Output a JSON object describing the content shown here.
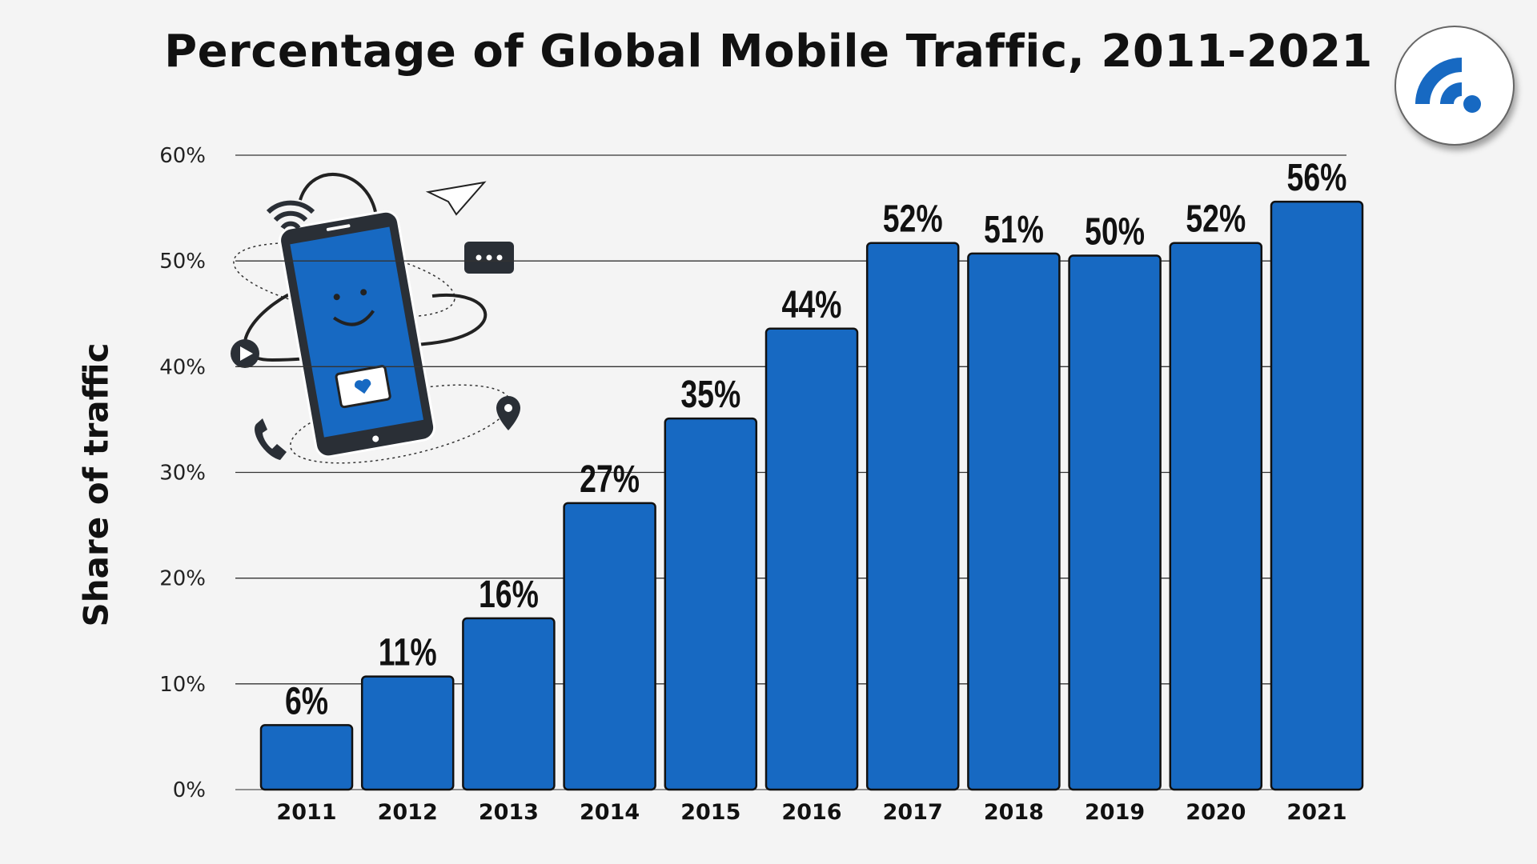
{
  "chart_data": {
    "type": "bar",
    "title": "Percentage of Global Mobile Traffic, 2011-2021",
    "xlabel": "",
    "ylabel": "Share of traffic",
    "categories": [
      "2011",
      "2012",
      "2013",
      "2014",
      "2015",
      "2016",
      "2017",
      "2018",
      "2019",
      "2020",
      "2021"
    ],
    "values": [
      6.1,
      10.7,
      16.2,
      27.1,
      35.1,
      43.6,
      51.7,
      50.7,
      50.5,
      51.7,
      55.6
    ],
    "data_labels": [
      "6%",
      "11%",
      "16%",
      "27%",
      "35%",
      "44%",
      "52%",
      "51%",
      "50%",
      "52%",
      "56%"
    ],
    "ylim": [
      0,
      60
    ],
    "yticks": [
      0,
      10,
      20,
      30,
      40,
      50,
      60
    ],
    "ytick_labels": [
      "0%",
      "10%",
      "20%",
      "30%",
      "40%",
      "50%",
      "60%"
    ],
    "grid": true,
    "bar_color": "#1769c2",
    "legend": "none"
  },
  "logo": {
    "icon": "signal-broadcast-icon",
    "color": "#1769c2"
  },
  "illustration": {
    "icon": "smartphone-icon"
  }
}
